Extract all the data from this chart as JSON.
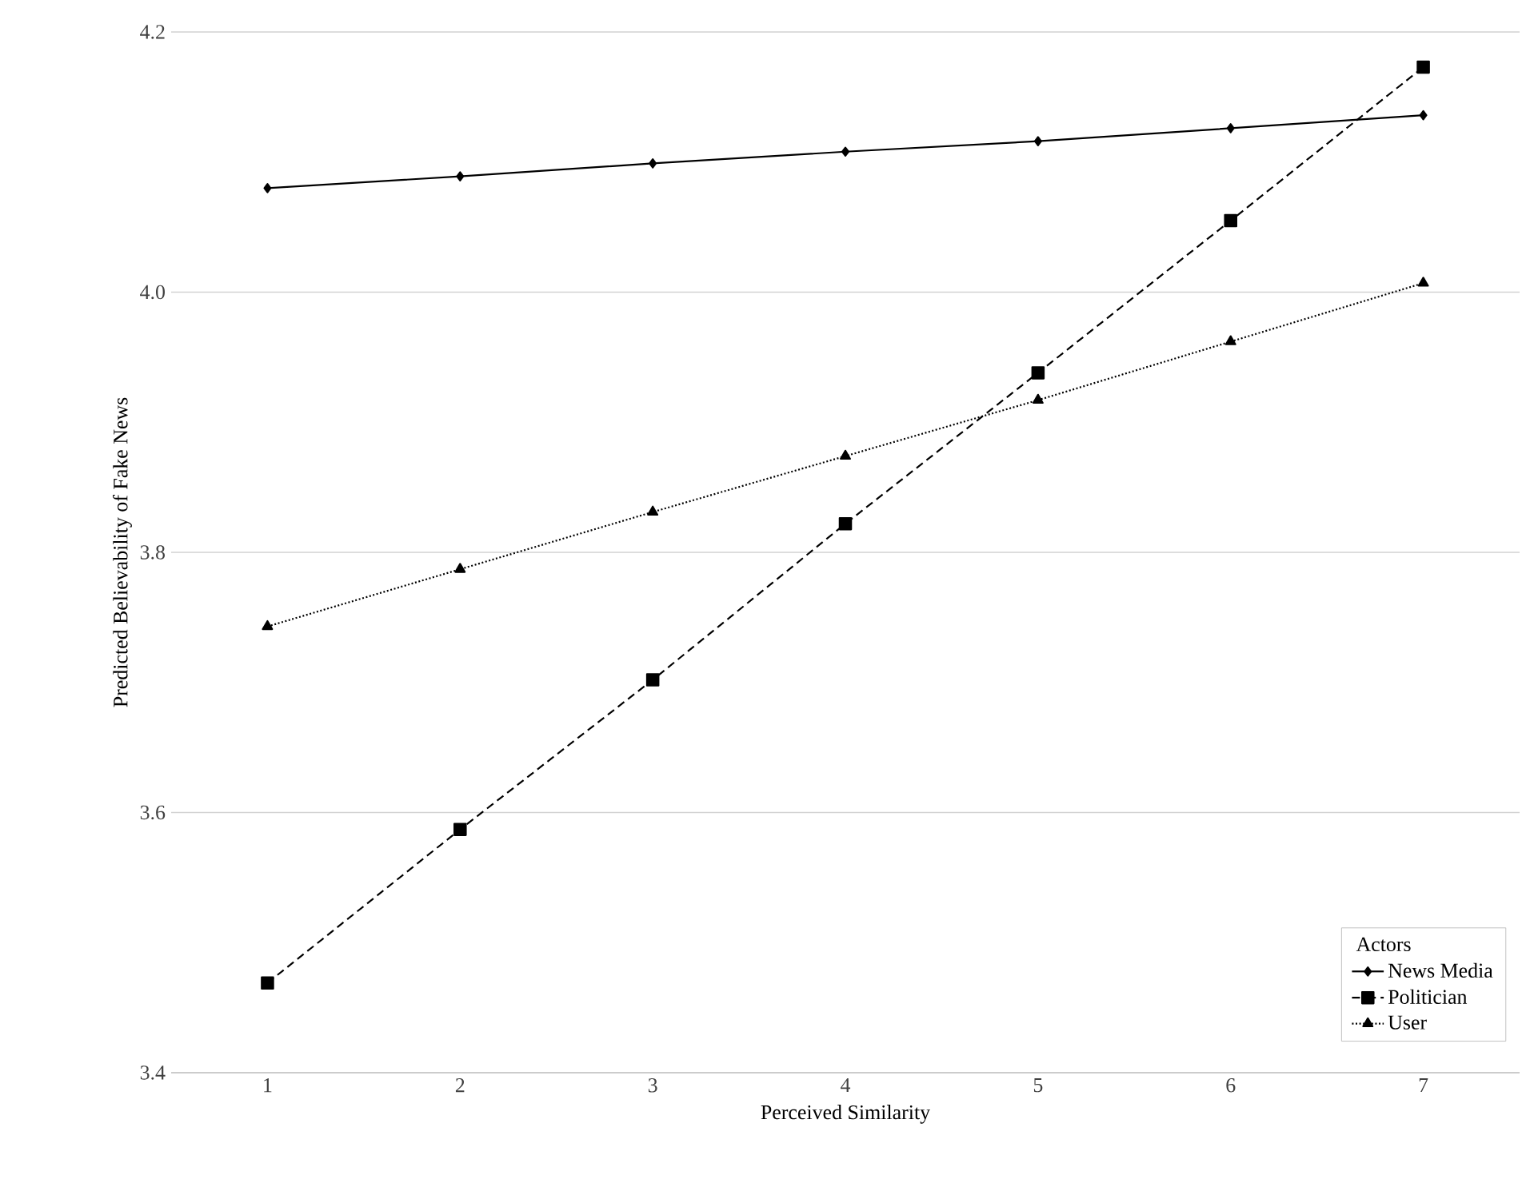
{
  "chart_data": {
    "type": "line",
    "xlabel": "Perceived Similarity",
    "ylabel": "Predicted Believability of Fake News",
    "legend_title": "Actors",
    "categories": [
      "1",
      "2",
      "3",
      "4",
      "5",
      "6",
      "7"
    ],
    "ylim": [
      3.4,
      4.2
    ],
    "yticks": [
      3.4,
      3.6,
      3.8,
      {
        "value": 4.0,
        "label": "4.0"
      },
      4.2
    ],
    "grid": "y",
    "legend": "bottom right",
    "series": [
      {
        "name": "News Media",
        "color": "#000000",
        "marker": "diamond",
        "line_style": "solid",
        "values": [
          4.08,
          4.089,
          4.099,
          4.108,
          4.116,
          4.126,
          4.136
        ]
      },
      {
        "name": "Politician",
        "color": "#000000",
        "marker": "square",
        "line_style": "dashed",
        "values": [
          3.469,
          3.587,
          3.702,
          3.822,
          3.938,
          4.055,
          4.173
        ]
      },
      {
        "name": "User",
        "color": "#000000",
        "marker": "triangle",
        "line_style": "dotted",
        "values": [
          3.743,
          3.787,
          3.831,
          3.874,
          3.917,
          3.962,
          4.007
        ]
      }
    ]
  }
}
